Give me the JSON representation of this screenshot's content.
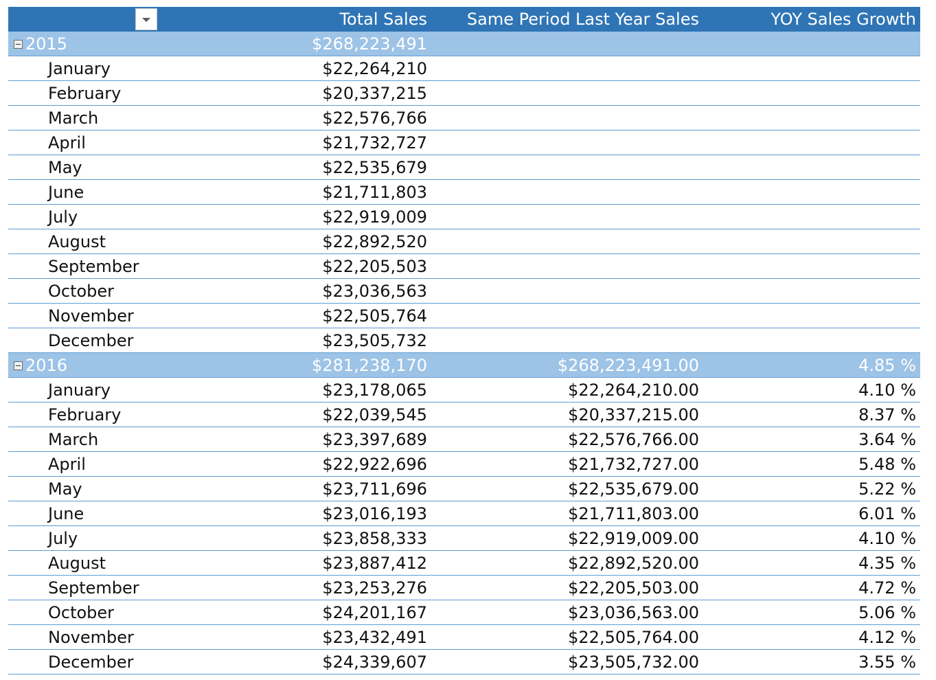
{
  "header": {
    "total_sales": "Total Sales",
    "same_period_last_year": "Same Period Last Year Sales",
    "yoy_growth": "YOY Sales Growth"
  },
  "colors": {
    "header_bg": "#2f75b5",
    "year_row_bg": "#9dc3e6",
    "row_divider": "#5b9bd5"
  },
  "icons": {
    "filter": "chevron-down-icon",
    "collapse": "minus-box-icon"
  },
  "years": [
    {
      "year": "2015",
      "total": "$268,223,491",
      "sply": "",
      "yoy": "",
      "months": [
        {
          "name": "January",
          "total": "$22,264,210",
          "sply": "",
          "yoy": ""
        },
        {
          "name": "February",
          "total": "$20,337,215",
          "sply": "",
          "yoy": ""
        },
        {
          "name": "March",
          "total": "$22,576,766",
          "sply": "",
          "yoy": ""
        },
        {
          "name": "April",
          "total": "$21,732,727",
          "sply": "",
          "yoy": ""
        },
        {
          "name": "May",
          "total": "$22,535,679",
          "sply": "",
          "yoy": ""
        },
        {
          "name": "June",
          "total": "$21,711,803",
          "sply": "",
          "yoy": ""
        },
        {
          "name": "July",
          "total": "$22,919,009",
          "sply": "",
          "yoy": ""
        },
        {
          "name": "August",
          "total": "$22,892,520",
          "sply": "",
          "yoy": ""
        },
        {
          "name": "September",
          "total": "$22,205,503",
          "sply": "",
          "yoy": ""
        },
        {
          "name": "October",
          "total": "$23,036,563",
          "sply": "",
          "yoy": ""
        },
        {
          "name": "November",
          "total": "$22,505,764",
          "sply": "",
          "yoy": ""
        },
        {
          "name": "December",
          "total": "$23,505,732",
          "sply": "",
          "yoy": ""
        }
      ]
    },
    {
      "year": "2016",
      "total": "$281,238,170",
      "sply": "$268,223,491.00",
      "yoy": "4.85 %",
      "months": [
        {
          "name": "January",
          "total": "$23,178,065",
          "sply": "$22,264,210.00",
          "yoy": "4.10 %"
        },
        {
          "name": "February",
          "total": "$22,039,545",
          "sply": "$20,337,215.00",
          "yoy": "8.37 %"
        },
        {
          "name": "March",
          "total": "$23,397,689",
          "sply": "$22,576,766.00",
          "yoy": "3.64 %"
        },
        {
          "name": "April",
          "total": "$22,922,696",
          "sply": "$21,732,727.00",
          "yoy": "5.48 %"
        },
        {
          "name": "May",
          "total": "$23,711,696",
          "sply": "$22,535,679.00",
          "yoy": "5.22 %"
        },
        {
          "name": "June",
          "total": "$23,016,193",
          "sply": "$21,711,803.00",
          "yoy": "6.01 %"
        },
        {
          "name": "July",
          "total": "$23,858,333",
          "sply": "$22,919,009.00",
          "yoy": "4.10 %"
        },
        {
          "name": "August",
          "total": "$23,887,412",
          "sply": "$22,892,520.00",
          "yoy": "4.35 %"
        },
        {
          "name": "September",
          "total": "$23,253,276",
          "sply": "$22,205,503.00",
          "yoy": "4.72 %"
        },
        {
          "name": "October",
          "total": "$24,201,167",
          "sply": "$23,036,563.00",
          "yoy": "5.06 %"
        },
        {
          "name": "November",
          "total": "$23,432,491",
          "sply": "$22,505,764.00",
          "yoy": "4.12 %"
        },
        {
          "name": "December",
          "total": "$24,339,607",
          "sply": "$23,505,732.00",
          "yoy": "3.55 %"
        }
      ]
    }
  ]
}
